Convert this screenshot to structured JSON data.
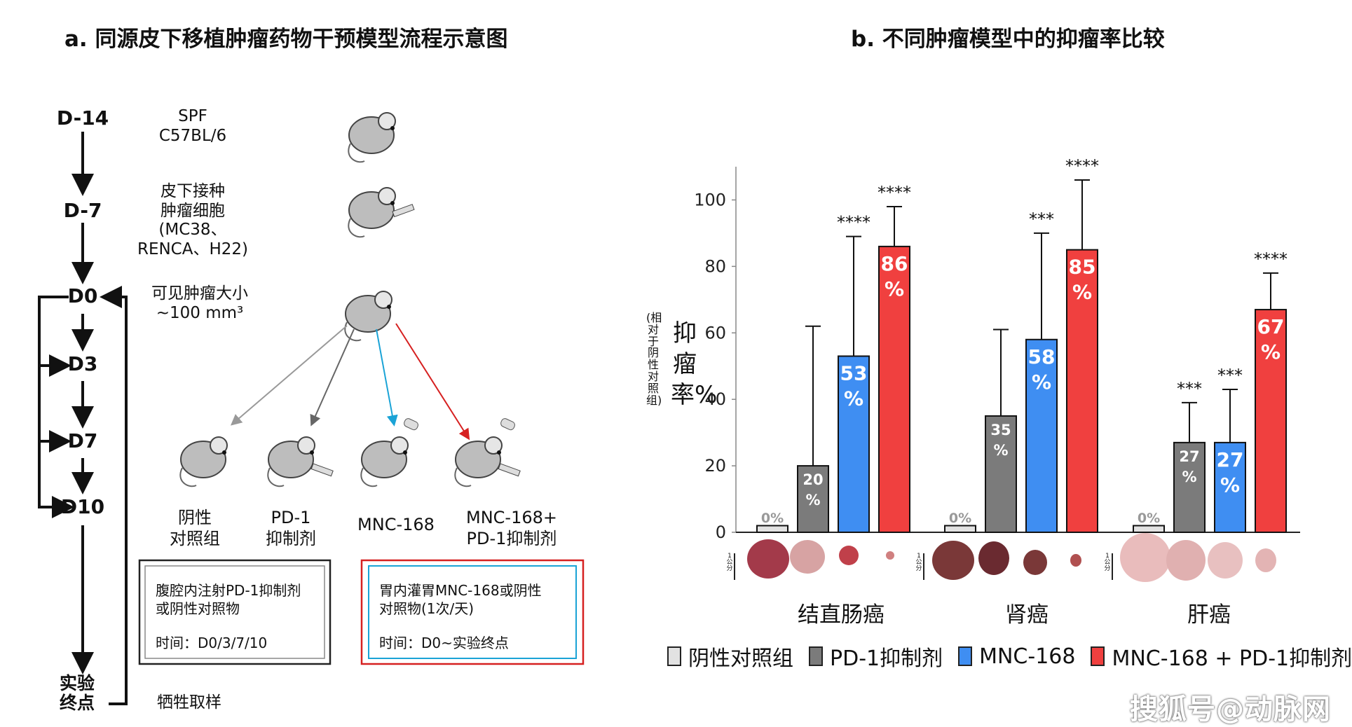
{
  "panel_a": {
    "title": "a. 同源皮下移植肿瘤药物干预模型流程示意图",
    "days": [
      "D-14",
      "D-7",
      "D0",
      "D3",
      "D7",
      "D10"
    ],
    "endpoint": "实验\n终点",
    "steps": {
      "d14": "SPF\nC57BL/6",
      "d7": "皮下接种\n肿瘤细胞\n(MC38、\nRENCA、H22)",
      "d0": "可见肿瘤大小\n~100 mm³",
      "end": "牺牲取样"
    },
    "groups": [
      "阴性\n对照组",
      "PD-1\n抑制剂",
      "MNC-168",
      "MNC-168+\nPD-1抑制剂"
    ],
    "box1": {
      "text": "腹腔内注射PD-1抑制剂\n或阴性对照物",
      "time": "时间：D0/3/7/10"
    },
    "box2": {
      "text": "胃内灌胃MNC-168或阴性\n对照物(1次/天)",
      "time": "时间：D0~实验终点"
    }
  },
  "panel_b": {
    "title": "b. 不同肿瘤模型中的抑瘤率比较",
    "ylabel_main": "抑瘤率%",
    "ylabel_sub": "(相对于阴性对照组)",
    "scale_label": "1\n公\n分",
    "legend": [
      "阴性对照组",
      "PD-1抑制剂",
      "MNC-168",
      "MNC-168 + PD-1抑制剂"
    ]
  },
  "colors": {
    "negative": "#e2e2e2",
    "pd1": "#7b7b7b",
    "mnc168": "#3f8ef2",
    "combo": "#f0403f",
    "flow_blue": "#1aa3d6",
    "flow_red": "#d62020"
  },
  "watermark": "搜狐号@动脉网",
  "chart_data": {
    "type": "bar",
    "categories": [
      "结直肠癌",
      "肾癌",
      "肝癌"
    ],
    "ylim": [
      0,
      110
    ],
    "yticks": [
      0,
      20,
      40,
      60,
      80,
      100
    ],
    "series": [
      {
        "name": "阴性对照组",
        "values": [
          0,
          0,
          0
        ],
        "labels": [
          "0%",
          "0%",
          "0%"
        ],
        "err_upper": [
          0,
          0,
          0
        ],
        "significance": [
          "",
          "",
          ""
        ]
      },
      {
        "name": "PD-1抑制剂",
        "values": [
          20,
          35,
          27
        ],
        "labels": [
          "20\n%",
          "35\n%",
          "27\n%"
        ],
        "err_upper": [
          62,
          61,
          39
        ],
        "significance": [
          "",
          "",
          "***"
        ]
      },
      {
        "name": "MNC-168",
        "values": [
          53,
          58,
          27
        ],
        "labels": [
          "53\n%",
          "58\n%",
          "27\n%"
        ],
        "err_upper": [
          89,
          90,
          43
        ],
        "significance": [
          "****",
          "***",
          "***"
        ]
      },
      {
        "name": "MNC-168 + PD-1抑制剂",
        "values": [
          86,
          85,
          67
        ],
        "labels": [
          "86\n%",
          "85\n%",
          "67\n%"
        ],
        "err_upper": [
          98,
          106,
          78
        ],
        "significance": [
          "****",
          "****",
          "****"
        ]
      }
    ]
  }
}
